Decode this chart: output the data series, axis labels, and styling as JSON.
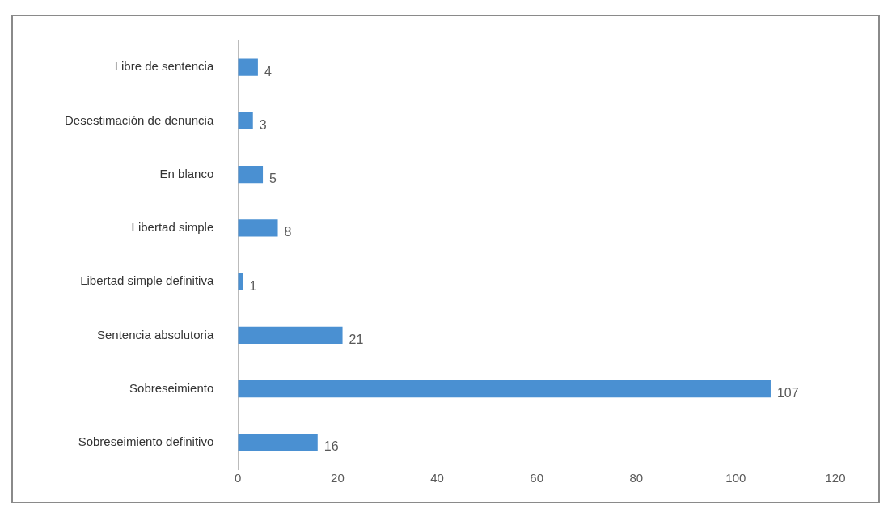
{
  "chart_data": {
    "type": "bar",
    "orientation": "horizontal",
    "categories": [
      "Libre de sentencia",
      "Desestimación de denuncia",
      "En blanco",
      "Libertad simple",
      "Libertad simple definitiva",
      "Sentencia absolutoria",
      "Sobreseimiento",
      "Sobreseimiento definitivo"
    ],
    "values": [
      4,
      3,
      5,
      8,
      1,
      21,
      107,
      16
    ],
    "color": "#4a90d2",
    "xlim": [
      0,
      120
    ],
    "xticks": [
      0,
      20,
      40,
      60,
      80,
      100,
      120
    ],
    "grid": false,
    "legend": false,
    "data_labels": true
  }
}
